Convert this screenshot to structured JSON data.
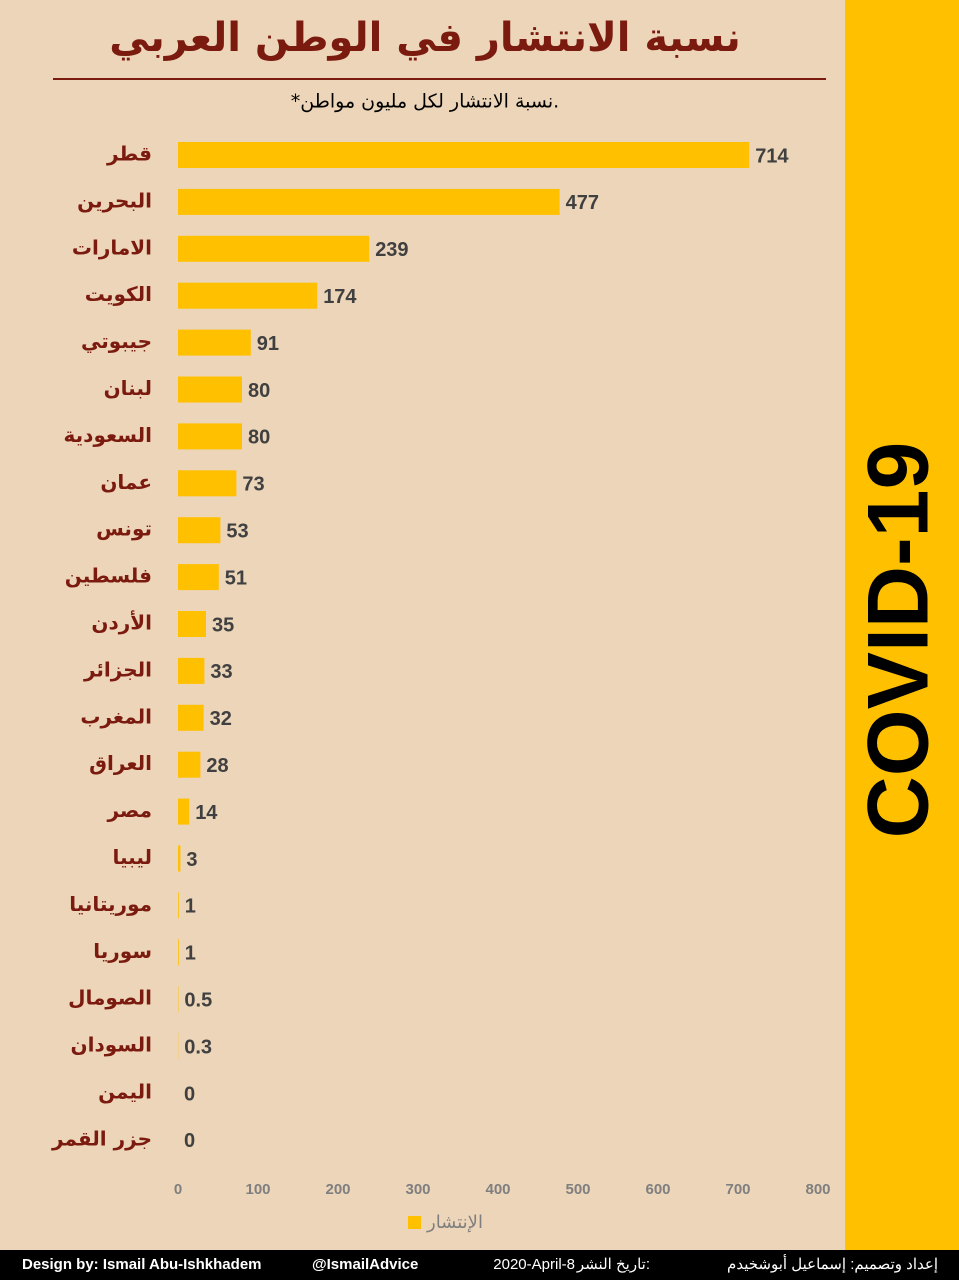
{
  "chart_data": {
    "type": "bar",
    "orientation": "horizontal",
    "title": "نسبة الانتشار في الوطن العربي",
    "subtitle": "*نسبة الانتشار لكل مليون مواطن.",
    "side_label": "COVID-19",
    "categories": [
      "قطر",
      "البحرين",
      "الامارات",
      "الكويت",
      "جيبوتي",
      "لبنان",
      "السعودية",
      "عمان",
      "تونس",
      "فلسطين",
      "الأردن",
      "الجزائر",
      "المغرب",
      "العراق",
      "مصر",
      "ليبيا",
      "موريتانيا",
      "سوريا",
      "الصومال",
      "السودان",
      "اليمن",
      "جزر القمر"
    ],
    "series": [
      {
        "name": "الإنتشار",
        "color": "#ffc000",
        "values": [
          714,
          477,
          239,
          174,
          91,
          80,
          80,
          73,
          53,
          51,
          35,
          33,
          32,
          28,
          14,
          3,
          1,
          1,
          0.5,
          0.3,
          0,
          0
        ]
      }
    ],
    "xlim": [
      0,
      800
    ],
    "xticks": [
      0,
      100,
      200,
      300,
      400,
      500,
      600,
      700,
      800
    ],
    "grid": false,
    "legend": "bottom"
  },
  "footer": {
    "credit_en": "Design by: Ismail Abu-Ishkhadem",
    "handle": "@IsmailAdvice",
    "date": "2020-April-8",
    "date_label": "تاريخ النشر:",
    "credit_ar": "إعداد وتصميم: إسماعيل أبوشخيدم"
  }
}
